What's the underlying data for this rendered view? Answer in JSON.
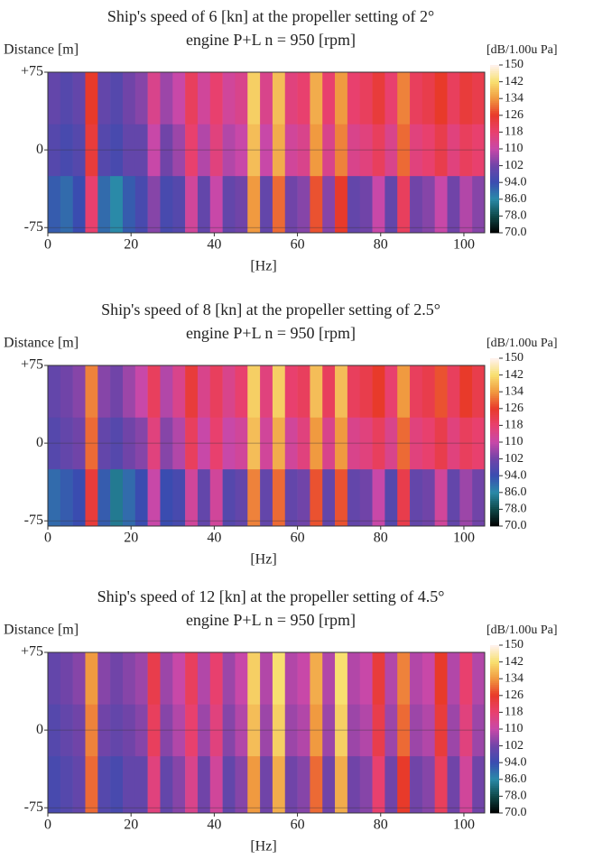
{
  "chart_data": [
    {
      "type": "heatmap",
      "title": "Ship's speed of 6 [kn] at the propeller setting of 2°",
      "subtitle": "engine P+L  n = 950 [rpm]",
      "ylabel": "Distance [m]",
      "xlabel": "[Hz]",
      "xlim": [
        0,
        105
      ],
      "xticks": [
        0,
        20,
        40,
        60,
        80,
        100
      ],
      "ylim": [
        -80,
        75
      ],
      "yticks": [
        {
          "value": 75,
          "label": "+75"
        },
        0,
        -75
      ],
      "grid": true,
      "x_edges": [
        0,
        3,
        6,
        9,
        12,
        15,
        18,
        21,
        24,
        27,
        30,
        33,
        36,
        39,
        42,
        45,
        48,
        51,
        54,
        57,
        60,
        63,
        66,
        69,
        72,
        75,
        78,
        81,
        84,
        87,
        90,
        93,
        96,
        99,
        102,
        105
      ],
      "y_edges": [
        -80,
        -25,
        25,
        75
      ],
      "values": [
        [
          92,
          90,
          94,
          118,
          90,
          86,
          92,
          96,
          104,
          96,
          98,
          112,
          100,
          110,
          100,
          102,
          134,
          100,
          130,
          102,
          104,
          128,
          104,
          126,
          100,
          102,
          110,
          100,
          120,
          102,
          104,
          110,
          102,
          108,
          104
        ],
        [
          98,
          96,
          98,
          124,
          98,
          96,
          100,
          100,
          110,
          102,
          106,
          118,
          108,
          116,
          108,
          110,
          138,
          110,
          136,
          112,
          114,
          134,
          114,
          132,
          114,
          116,
          120,
          114,
          130,
          116,
          118,
          122,
          116,
          120,
          118
        ],
        [
          100,
          98,
          100,
          126,
          100,
          98,
          102,
          104,
          114,
          106,
          110,
          120,
          112,
          118,
          112,
          114,
          140,
          114,
          138,
          116,
          118,
          136,
          118,
          134,
          118,
          120,
          124,
          118,
          132,
          120,
          122,
          126,
          120,
          124,
          122
        ]
      ],
      "colorbar": {
        "label": "[dB/1.00u Pa]",
        "ticks": [
          150,
          142,
          134,
          126,
          118,
          110,
          102,
          {
            "value": 94,
            "label": "94.0"
          },
          {
            "value": 86,
            "label": "86.0"
          },
          {
            "value": 78,
            "label": "78.0"
          },
          {
            "value": 70,
            "label": "70.0"
          }
        ],
        "colors": [
          "#fff2f2",
          "#f8e070",
          "#f09a40",
          "#e83a2a",
          "#e8406e",
          "#c848a8",
          "#7044a8",
          "#3a4cb0",
          "#2a8aa8",
          "#0e4a4a",
          "#000000"
        ]
      }
    },
    {
      "type": "heatmap",
      "title": "Ship's speed of 8 [kn] at the propeller setting of 2.5°",
      "subtitle": "engine P+L  n = 950 [rpm]",
      "ylabel": "Distance [m]",
      "xlabel": "[Hz]",
      "xlim": [
        0,
        105
      ],
      "xticks": [
        0,
        20,
        40,
        60,
        80,
        100
      ],
      "ylim": [
        -80,
        75
      ],
      "yticks": [
        {
          "value": 75,
          "label": "+75"
        },
        0,
        -75
      ],
      "grid": true,
      "x_edges": [
        0,
        3,
        6,
        9,
        12,
        15,
        18,
        21,
        24,
        27,
        30,
        33,
        36,
        39,
        42,
        45,
        48,
        51,
        54,
        57,
        60,
        63,
        66,
        69,
        72,
        75,
        78,
        81,
        84,
        87,
        90,
        93,
        96,
        99,
        102,
        105
      ],
      "y_edges": [
        -80,
        -25,
        25,
        75
      ],
      "values": [
        [
          90,
          92,
          94,
          124,
          92,
          84,
          90,
          94,
          110,
          94,
          96,
          112,
          100,
          112,
          98,
          100,
          132,
          100,
          130,
          100,
          102,
          128,
          100,
          128,
          100,
          102,
          110,
          98,
          122,
          100,
          102,
          112,
          100,
          106,
          102
        ],
        [
          98,
          100,
          102,
          130,
          100,
          98,
          102,
          104,
          116,
          104,
          108,
          120,
          110,
          118,
          110,
          112,
          138,
          112,
          136,
          112,
          116,
          134,
          114,
          134,
          114,
          116,
          120,
          114,
          130,
          116,
          118,
          122,
          116,
          120,
          118
        ],
        [
          100,
          102,
          104,
          132,
          104,
          102,
          106,
          110,
          120,
          108,
          114,
          124,
          114,
          120,
          114,
          118,
          140,
          116,
          140,
          118,
          120,
          138,
          120,
          138,
          120,
          122,
          126,
          118,
          134,
          120,
          122,
          128,
          120,
          126,
          122
        ]
      ],
      "colorbar": {
        "label": "[dB/1.00u Pa]",
        "ticks": [
          150,
          142,
          134,
          126,
          118,
          110,
          102,
          {
            "value": 94,
            "label": "94.0"
          },
          {
            "value": 86,
            "label": "86.0"
          },
          {
            "value": 78,
            "label": "78.0"
          },
          {
            "value": 70,
            "label": "70.0"
          }
        ],
        "colors": [
          "#fff2f2",
          "#f8e070",
          "#f09a40",
          "#e83a2a",
          "#e8406e",
          "#c848a8",
          "#7044a8",
          "#3a4cb0",
          "#2a8aa8",
          "#0e4a4a",
          "#000000"
        ]
      }
    },
    {
      "type": "heatmap",
      "title": "Ship's speed of 12 [kn] at the propeller setting of 4.5°",
      "subtitle": "engine P+L  n = 950 [rpm]",
      "ylabel": "Distance [m]",
      "xlabel": "[Hz]",
      "xlim": [
        0,
        105
      ],
      "xticks": [
        0,
        20,
        40,
        60,
        80,
        100
      ],
      "ylim": [
        -80,
        75
      ],
      "yticks": [
        {
          "value": 75,
          "label": "+75"
        },
        0,
        -75
      ],
      "grid": true,
      "x_edges": [
        0,
        3,
        6,
        9,
        12,
        15,
        18,
        21,
        24,
        27,
        30,
        33,
        36,
        39,
        42,
        45,
        48,
        51,
        54,
        57,
        60,
        63,
        66,
        69,
        72,
        75,
        78,
        81,
        84,
        87,
        90,
        93,
        96,
        99,
        102,
        105
      ],
      "y_edges": [
        -80,
        -25,
        25,
        75
      ],
      "values": [
        [
          96,
          98,
          100,
          130,
          98,
          96,
          100,
          100,
          116,
          100,
          104,
          114,
          102,
          112,
          100,
          104,
          134,
          102,
          136,
          102,
          104,
          130,
          102,
          136,
          102,
          104,
          118,
          102,
          126,
          102,
          104,
          120,
          102,
          112,
          102
        ],
        [
          98,
          100,
          102,
          132,
          102,
          100,
          102,
          104,
          120,
          104,
          108,
          118,
          106,
          116,
          104,
          108,
          138,
          106,
          140,
          106,
          108,
          134,
          106,
          140,
          106,
          108,
          122,
          106,
          130,
          106,
          108,
          124,
          106,
          116,
          106
        ],
        [
          100,
          102,
          104,
          134,
          104,
          102,
          104,
          106,
          122,
          106,
          110,
          120,
          108,
          118,
          106,
          110,
          140,
          108,
          142,
          108,
          110,
          136,
          108,
          142,
          108,
          110,
          124,
          108,
          132,
          108,
          110,
          126,
          108,
          118,
          108
        ]
      ],
      "colorbar": {
        "label": "[dB/1.00u Pa]",
        "ticks": [
          150,
          142,
          134,
          126,
          118,
          110,
          102,
          {
            "value": 94,
            "label": "94.0"
          },
          {
            "value": 86,
            "label": "86.0"
          },
          {
            "value": 78,
            "label": "78.0"
          },
          {
            "value": 70,
            "label": "70.0"
          }
        ],
        "colors": [
          "#fff2f2",
          "#f8e070",
          "#f09a40",
          "#e83a2a",
          "#e8406e",
          "#c848a8",
          "#7044a8",
          "#3a4cb0",
          "#2a8aa8",
          "#0e4a4a",
          "#000000"
        ]
      }
    }
  ]
}
